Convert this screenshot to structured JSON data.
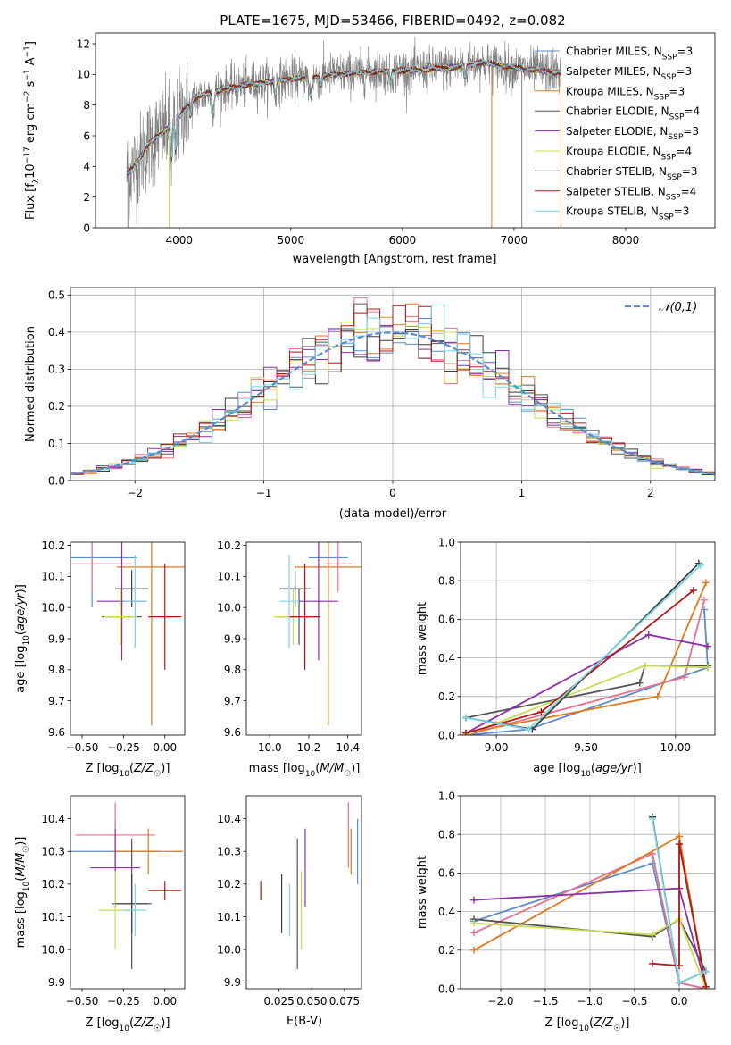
{
  "figure_title": "PLATE=1675, MJD=53466, FIBERID=0492, z=0.082",
  "colors": {
    "Chabrier MILES": "#5b8bd0",
    "Salpeter MILES": "#e8718d",
    "Kroupa MILES": "#e07a1f",
    "Chabrier ELODIE": "#555555",
    "Salpeter ELODIE": "#8e2fa8",
    "Kroupa ELODIE": "#c7dc4f",
    "Chabrier STELIB": "#3c3c3c",
    "Salpeter STELIB": "#b01818",
    "Kroupa STELIB": "#76d7e0",
    "data": "#808080"
  },
  "chart_data": [
    {
      "id": "spectrum",
      "type": "line",
      "xlabel": "wavelength [Angstrom, rest frame]",
      "ylabel": "Flux [f_λ10⁻¹⁷ erg cm⁻² s⁻¹ A⁻¹]",
      "xlim": [
        3250,
        8800
      ],
      "ylim": [
        0,
        12.7
      ],
      "xticks": [
        4000,
        5000,
        6000,
        7000,
        8000
      ],
      "yticks": [
        0,
        2,
        4,
        6,
        8,
        10,
        12
      ],
      "legend_position": "right",
      "series": [
        {
          "name": "Chabrier MILES, N_SSP=3"
        },
        {
          "name": "Salpeter MILES, N_SSP=3"
        },
        {
          "name": "Kroupa MILES, N_SSP=3"
        },
        {
          "name": "Chabrier ELODIE, N_SSP=4"
        },
        {
          "name": "Salpeter ELODIE, N_SSP=3"
        },
        {
          "name": "Kroupa ELODIE, N_SSP=4"
        },
        {
          "name": "Chabrier STELIB, N_SSP=3"
        },
        {
          "name": "Salpeter STELIB, N_SSP=4"
        },
        {
          "name": "Kroupa STELIB, N_SSP=3"
        }
      ],
      "continuum": {
        "x": [
          3530,
          3620,
          3700,
          3800,
          3900,
          4000,
          4100,
          4300,
          4600,
          5000,
          5400,
          5800,
          6200,
          6500,
          6700,
          7000,
          7300,
          7500,
          7700,
          8000,
          8300,
          8600
        ],
        "y": [
          3.5,
          4.2,
          5.2,
          6.0,
          6.5,
          7.2,
          8.3,
          8.9,
          9.3,
          9.7,
          10.0,
          10.2,
          10.3,
          10.5,
          10.8,
          10.4,
          10.2,
          10.0,
          9.9,
          9.7,
          9.5,
          9.4
        ]
      }
    },
    {
      "id": "residuals",
      "type": "histogram",
      "xlabel": "(data-model)/error",
      "ylabel": "Normed distribution",
      "xlim": [
        -2.5,
        2.5
      ],
      "ylim": [
        0,
        0.52
      ],
      "xticks": [
        -2,
        -1,
        0,
        1,
        2
      ],
      "yticks": [
        0.0,
        0.1,
        0.2,
        0.3,
        0.4,
        0.5
      ],
      "legend": "𝒩(0,1)",
      "legend_position": "top-right",
      "bin_width": 0.1,
      "grid": true
    },
    {
      "id": "age_vs_Z",
      "type": "errorbar",
      "xlabel": "Z [log₁₀(Z/Z☉)]",
      "ylabel": "age  [log₁₀(age/yr)]",
      "xlim": [
        -0.57,
        0.12
      ],
      "ylim": [
        9.59,
        10.21
      ],
      "xticks": [
        -0.5,
        -0.25,
        0.0
      ],
      "xtick_labels": [
        "−0.50",
        "−0.25",
        "0.00"
      ],
      "yticks": [
        9.6,
        9.7,
        9.8,
        9.9,
        10.0,
        10.1,
        10.2
      ],
      "points": [
        {
          "model": "Chabrier MILES",
          "x": -0.44,
          "xerr": 0.27,
          "y": 10.16,
          "yerr": 0.16
        },
        {
          "model": "Salpeter MILES",
          "x": -0.44,
          "xerr": 0.24,
          "y": 10.14,
          "yerr": 0.09
        },
        {
          "model": "Kroupa MILES",
          "x": -0.08,
          "xerr": 0.21,
          "y": 10.13,
          "yerr": 0.51
        },
        {
          "model": "Chabrier ELODIE",
          "x": -0.26,
          "xerr": 0.12,
          "y": 9.97,
          "yerr": 0.09
        },
        {
          "model": "Salpeter ELODIE",
          "x": -0.26,
          "xerr": 0.15,
          "y": 10.02,
          "yerr": 0.19
        },
        {
          "model": "Kroupa ELODIE",
          "x": -0.27,
          "xerr": 0.1,
          "y": 9.97,
          "yerr": 0.09
        },
        {
          "model": "Chabrier STELIB",
          "x": -0.2,
          "xerr": 0.1,
          "y": 10.06,
          "yerr": 0.06
        },
        {
          "model": "Salpeter STELIB",
          "x": 0.0,
          "xerr": 0.1,
          "y": 9.97,
          "yerr": 0.17
        },
        {
          "model": "Kroupa STELIB",
          "x": -0.18,
          "xerr": 0.07,
          "y": 10.02,
          "yerr": 0.15
        }
      ]
    },
    {
      "id": "age_vs_mass",
      "type": "errorbar",
      "xlabel": "mass [log₁₀(M/M☉)]",
      "ylabel": "",
      "xlim": [
        9.88,
        10.47
      ],
      "ylim": [
        9.59,
        10.21
      ],
      "xticks": [
        10.0,
        10.2,
        10.4
      ],
      "yticks": [
        9.6,
        9.7,
        9.8,
        9.9,
        10.0,
        10.1,
        10.2
      ],
      "points": [
        {
          "model": "Chabrier MILES",
          "x": 10.3,
          "xerr": 0.1,
          "y": 10.16,
          "yerr": 0.16
        },
        {
          "model": "Salpeter MILES",
          "x": 10.35,
          "xerr": 0.07,
          "y": 10.14,
          "yerr": 0.09
        },
        {
          "model": "Kroupa MILES",
          "x": 10.3,
          "xerr": 0.17,
          "y": 10.13,
          "yerr": 0.51
        },
        {
          "model": "Chabrier ELODIE",
          "x": 10.15,
          "xerr": 0.1,
          "y": 9.97,
          "yerr": 0.09
        },
        {
          "model": "Salpeter ELODIE",
          "x": 10.25,
          "xerr": 0.1,
          "y": 10.02,
          "yerr": 0.19
        },
        {
          "model": "Kroupa ELODIE",
          "x": 10.12,
          "xerr": 0.1,
          "y": 9.97,
          "yerr": 0.09
        },
        {
          "model": "Chabrier STELIB",
          "x": 10.13,
          "xerr": 0.08,
          "y": 10.06,
          "yerr": 0.06
        },
        {
          "model": "Salpeter STELIB",
          "x": 10.18,
          "xerr": 0.08,
          "y": 9.97,
          "yerr": 0.17
        },
        {
          "model": "Kroupa STELIB",
          "x": 10.1,
          "xerr": 0.05,
          "y": 10.02,
          "yerr": 0.15
        }
      ]
    },
    {
      "id": "weight_vs_age",
      "type": "line",
      "xlabel": "age  [log₁₀(age/yr)]",
      "ylabel": "mass weight",
      "xlim": [
        8.8,
        10.22
      ],
      "ylim": [
        0,
        1.0
      ],
      "xticks": [
        9.0,
        9.5,
        10.0
      ],
      "xtick_labels": [
        "9.00",
        "9.50",
        "10.00"
      ],
      "yticks": [
        0.0,
        0.2,
        0.4,
        0.6,
        0.8,
        1.0
      ],
      "grid": true,
      "series": [
        {
          "model": "Chabrier MILES",
          "x": [
            8.83,
            9.18,
            10.18,
            10.16
          ],
          "y": [
            0.0,
            0.03,
            0.35,
            0.65
          ]
        },
        {
          "model": "Salpeter MILES",
          "x": [
            8.83,
            10.05,
            10.16
          ],
          "y": [
            0.0,
            0.3,
            0.7
          ]
        },
        {
          "model": "Kroupa MILES",
          "x": [
            8.83,
            9.9,
            10.17
          ],
          "y": [
            0.01,
            0.2,
            0.79
          ]
        },
        {
          "model": "Chabrier ELODIE",
          "x": [
            8.83,
            9.8,
            9.83,
            10.18
          ],
          "y": [
            0.09,
            0.27,
            0.36,
            0.36
          ]
        },
        {
          "model": "Salpeter ELODIE",
          "x": [
            8.83,
            9.85,
            10.18
          ],
          "y": [
            0.01,
            0.52,
            0.46
          ]
        },
        {
          "model": "Kroupa ELODIE",
          "x": [
            8.83,
            9.83,
            10.18
          ],
          "y": [
            0.0,
            0.36,
            0.35
          ]
        },
        {
          "model": "Chabrier STELIB",
          "x": [
            8.83,
            9.2,
            10.13
          ],
          "y": [
            0.09,
            0.03,
            0.89
          ]
        },
        {
          "model": "Salpeter STELIB",
          "x": [
            8.83,
            9.25,
            10.1
          ],
          "y": [
            0.01,
            0.12,
            0.75
          ]
        },
        {
          "model": "Kroupa STELIB",
          "x": [
            8.83,
            9.18,
            10.14
          ],
          "y": [
            0.09,
            0.03,
            0.88
          ]
        }
      ]
    },
    {
      "id": "mass_vs_Z",
      "type": "errorbar",
      "xlabel": "Z [log₁₀(Z/Z☉)]",
      "ylabel": "mass [log₁₀(M/M☉)]",
      "xlim": [
        -0.57,
        0.12
      ],
      "ylim": [
        9.88,
        10.47
      ],
      "xticks": [
        -0.5,
        -0.25,
        0.0
      ],
      "xtick_labels": [
        "−0.50",
        "−0.25",
        "0.00"
      ],
      "yticks": [
        9.9,
        10.0,
        10.1,
        10.2,
        10.3,
        10.4
      ],
      "points": [
        {
          "model": "Chabrier MILES",
          "x": -0.3,
          "xerr": 0.27,
          "y": 10.3,
          "yerr": 0.1
        },
        {
          "model": "Salpeter MILES",
          "x": -0.3,
          "xerr": 0.24,
          "y": 10.35,
          "yerr": 0.1
        },
        {
          "model": "Kroupa MILES",
          "x": -0.1,
          "xerr": 0.21,
          "y": 10.3,
          "yerr": 0.07
        },
        {
          "model": "Chabrier ELODIE",
          "x": -0.2,
          "xerr": 0.12,
          "y": 10.14,
          "yerr": 0.2
        },
        {
          "model": "Salpeter ELODIE",
          "x": -0.3,
          "xerr": 0.15,
          "y": 10.25,
          "yerr": 0.12
        },
        {
          "model": "Kroupa ELODIE",
          "x": -0.3,
          "xerr": 0.1,
          "y": 10.12,
          "yerr": 0.12
        },
        {
          "model": "Chabrier STELIB",
          "x": -0.2,
          "xerr": 0.1,
          "y": 10.14,
          "yerr": 0.09
        },
        {
          "model": "Salpeter STELIB",
          "x": 0.0,
          "xerr": 0.1,
          "y": 10.18,
          "yerr": 0.03
        },
        {
          "model": "Kroupa STELIB",
          "x": -0.18,
          "xerr": 0.07,
          "y": 10.12,
          "yerr": 0.08
        }
      ]
    },
    {
      "id": "mass_vs_EBV",
      "type": "errorbar",
      "xlabel": "E(B-V)",
      "ylabel": "",
      "xlim": [
        0.0,
        0.088
      ],
      "ylim": [
        9.88,
        10.47
      ],
      "xticks": [
        0.025,
        0.05,
        0.075
      ],
      "xtick_labels": [
        "0.025",
        "0.050",
        "0.075"
      ],
      "yticks": [
        9.9,
        10.0,
        10.1,
        10.2,
        10.3,
        10.4
      ],
      "points": [
        {
          "model": "Chabrier MILES",
          "x": 0.085,
          "y": 10.3,
          "yerr": 0.1
        },
        {
          "model": "Salpeter MILES",
          "x": 0.078,
          "y": 10.35,
          "yerr": 0.1
        },
        {
          "model": "Kroupa MILES",
          "x": 0.08,
          "y": 10.3,
          "yerr": 0.07
        },
        {
          "model": "Chabrier ELODIE",
          "x": 0.039,
          "y": 10.14,
          "yerr": 0.2
        },
        {
          "model": "Salpeter ELODIE",
          "x": 0.045,
          "y": 10.25,
          "yerr": 0.12
        },
        {
          "model": "Kroupa ELODIE",
          "x": 0.042,
          "y": 10.12,
          "yerr": 0.12
        },
        {
          "model": "Chabrier STELIB",
          "x": 0.027,
          "y": 10.14,
          "yerr": 0.09
        },
        {
          "model": "Salpeter STELIB",
          "x": 0.011,
          "y": 10.18,
          "yerr": 0.03
        },
        {
          "model": "Kroupa STELIB",
          "x": 0.033,
          "y": 10.12,
          "yerr": 0.08
        }
      ]
    },
    {
      "id": "weight_vs_Z",
      "type": "line",
      "xlabel": "Z [log₁₀(Z/Z☉)]",
      "ylabel": "mass weight",
      "xlim": [
        -2.45,
        0.4
      ],
      "ylim": [
        0,
        1.0
      ],
      "xticks": [
        -2.0,
        -1.5,
        -1.0,
        -0.5,
        0.0
      ],
      "yticks": [
        0.0,
        0.2,
        0.4,
        0.6,
        0.8,
        1.0
      ],
      "grid": true,
      "series": [
        {
          "model": "Chabrier MILES",
          "x": [
            -2.3,
            -0.3,
            0.0,
            0.3
          ],
          "y": [
            0.35,
            0.65,
            0.03,
            0.0
          ]
        },
        {
          "model": "Salpeter MILES",
          "x": [
            -2.3,
            -0.3,
            0.0,
            0.3
          ],
          "y": [
            0.29,
            0.7,
            0.03,
            0.0
          ]
        },
        {
          "model": "Kroupa MILES",
          "x": [
            -2.3,
            0.0,
            0.3
          ],
          "y": [
            0.2,
            0.79,
            0.01
          ]
        },
        {
          "model": "Chabrier ELODIE",
          "x": [
            -2.3,
            -0.3,
            0.0,
            0.3
          ],
          "y": [
            0.36,
            0.27,
            0.36,
            0.09
          ]
        },
        {
          "model": "Salpeter ELODIE",
          "x": [
            -2.3,
            0.0,
            0.3
          ],
          "y": [
            0.46,
            0.52,
            0.01
          ]
        },
        {
          "model": "Kroupa ELODIE",
          "x": [
            -2.3,
            -0.3,
            0.0,
            0.3
          ],
          "y": [
            0.34,
            0.28,
            0.36,
            0.0
          ]
        },
        {
          "model": "Chabrier STELIB",
          "x": [
            -0.3,
            0.0,
            0.3
          ],
          "y": [
            0.89,
            0.03,
            0.09
          ]
        },
        {
          "model": "Salpeter STELIB",
          "x": [
            -0.3,
            0.0,
            0.0,
            0.3
          ],
          "y": [
            0.13,
            0.12,
            0.75,
            0.01
          ]
        },
        {
          "model": "Kroupa STELIB",
          "x": [
            -0.3,
            0.0,
            0.3
          ],
          "y": [
            0.88,
            0.03,
            0.09
          ]
        }
      ]
    }
  ]
}
